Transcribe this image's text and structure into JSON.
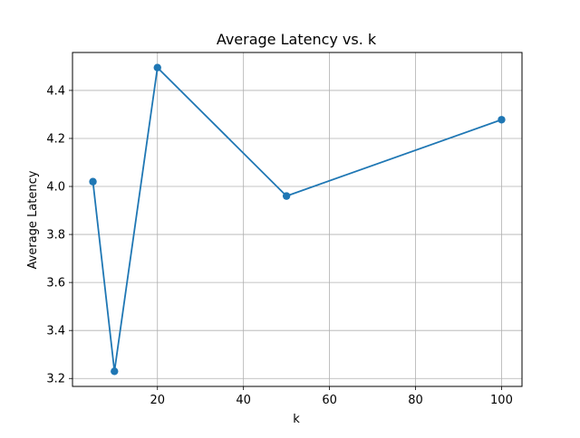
{
  "chart_data": {
    "type": "line",
    "title": "Average Latency vs. k",
    "xlabel": "k",
    "ylabel": "Average Latency",
    "x": [
      5,
      10,
      20,
      50,
      100
    ],
    "series": [
      {
        "values": [
          4.02,
          3.23,
          4.495,
          3.96,
          4.278
        ],
        "color": "#1f77b4",
        "marker": "circle"
      }
    ],
    "xlim": [
      0.25,
      104.75
    ],
    "ylim": [
      3.167,
      4.558
    ],
    "xticks": [
      20,
      40,
      60,
      80,
      100
    ],
    "xtick_labels": [
      "20",
      "40",
      "60",
      "80",
      "100"
    ],
    "yticks": [
      3.2,
      3.4,
      3.6,
      3.8,
      4.0,
      4.2,
      4.4
    ],
    "ytick_labels": [
      "3.2",
      "3.4",
      "3.6",
      "3.8",
      "4.0",
      "4.2",
      "4.4"
    ],
    "grid": true,
    "legend": null
  }
}
